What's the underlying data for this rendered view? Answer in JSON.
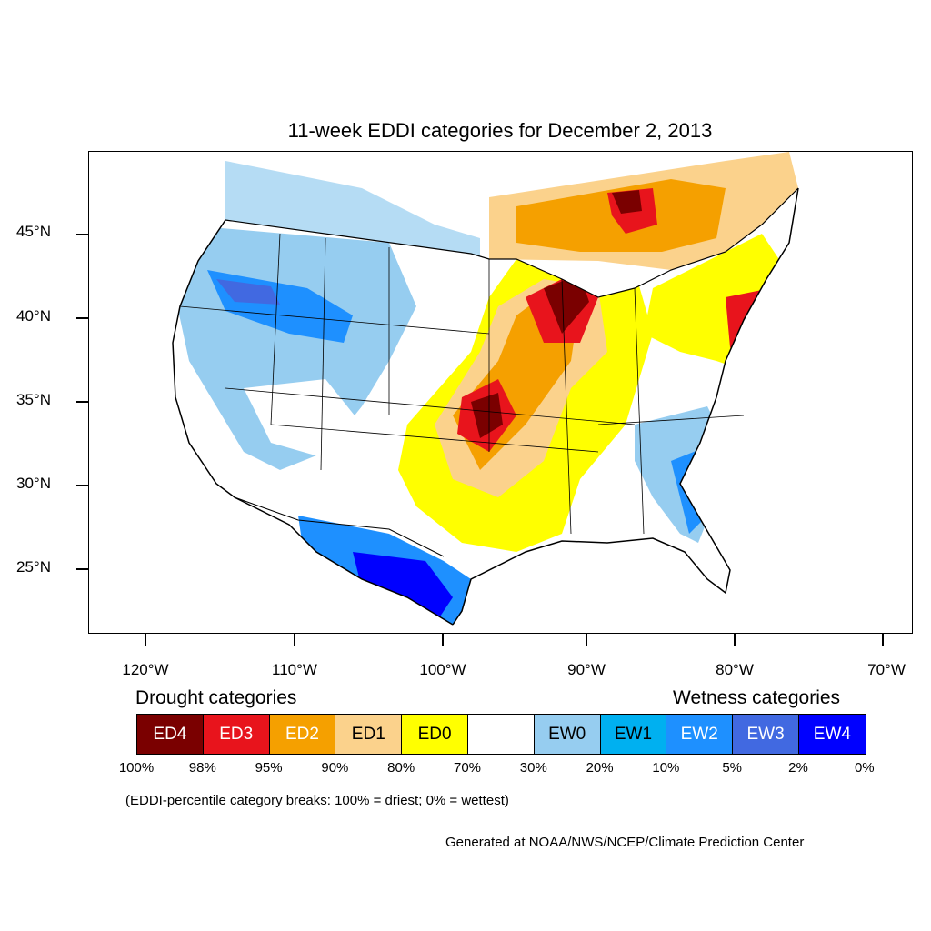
{
  "title": "11-week EDDI categories for December 2, 2013",
  "map": {
    "lat_labels": [
      "45°N",
      "40°N",
      "35°N",
      "30°N",
      "25°N"
    ],
    "lon_labels": [
      "120°W",
      "110°W",
      "100°W",
      "90°W",
      "80°W",
      "70°W"
    ]
  },
  "legend": {
    "drought_heading": "Drought categories",
    "wetness_heading": "Wetness categories",
    "categories": [
      {
        "label": "ED4",
        "color": "#7a0000",
        "text_color": "#ffffff"
      },
      {
        "label": "ED3",
        "color": "#e8141c",
        "text_color": "#ffffff"
      },
      {
        "label": "ED2",
        "color": "#f5a000",
        "text_color": "#ffffff"
      },
      {
        "label": "ED1",
        "color": "#fbd28c",
        "text_color": "#000000"
      },
      {
        "label": "ED0",
        "color": "#ffff00",
        "text_color": "#000000"
      },
      {
        "label": "",
        "color": "#ffffff",
        "text_color": "#000000"
      },
      {
        "label": "EW0",
        "color": "#96cdf0",
        "text_color": "#000000"
      },
      {
        "label": "EW1",
        "color": "#00b0f0",
        "text_color": "#000000"
      },
      {
        "label": "EW2",
        "color": "#1e90ff",
        "text_color": "#ffffff"
      },
      {
        "label": "EW3",
        "color": "#4169e1",
        "text_color": "#ffffff"
      },
      {
        "label": "EW4",
        "color": "#0000ff",
        "text_color": "#ffffff"
      }
    ],
    "breaks": [
      "100%",
      "98%",
      "95%",
      "90%",
      "80%",
      "70%",
      "30%",
      "20%",
      "10%",
      "5%",
      "2%",
      "0%"
    ]
  },
  "note": "(EDDI-percentile category breaks: 100% = driest; 0% = wettest)",
  "credit": "Generated at NOAA/NWS/NCEP/Climate Prediction Center"
}
